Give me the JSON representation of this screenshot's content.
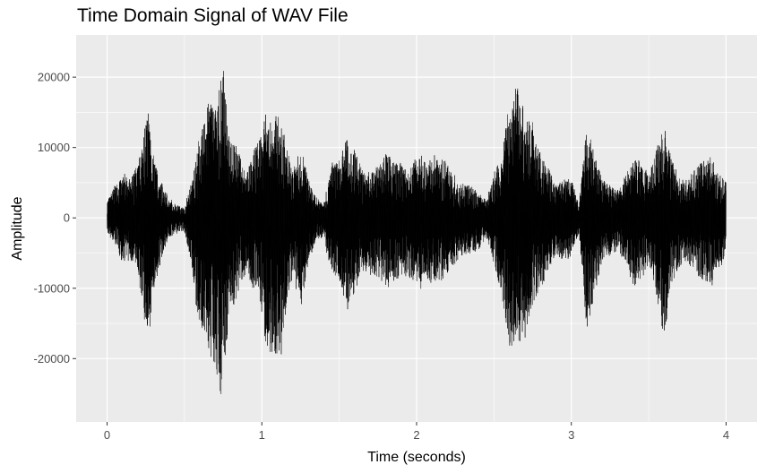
{
  "chart_data": {
    "type": "line",
    "title": "Time Domain Signal of WAV File",
    "xlabel": "Time (seconds)",
    "ylabel": "Amplitude",
    "xlim": [
      -0.2,
      4.2
    ],
    "ylim": [
      -29000,
      26000
    ],
    "x_ticks": [
      0,
      1,
      2,
      3,
      4
    ],
    "x_tick_labels": [
      "0",
      "1",
      "2",
      "3",
      "4"
    ],
    "y_ticks": [
      -20000,
      -10000,
      0,
      10000,
      20000
    ],
    "y_tick_labels": [
      "-20000",
      "-10000",
      "0",
      "10000",
      "20000"
    ],
    "grid": true,
    "panel_color": "#ebebeb",
    "line_color": "#000000",
    "series": [
      {
        "x": [
          0.0,
          0.05,
          0.1,
          0.15,
          0.2,
          0.22,
          0.25,
          0.27,
          0.3,
          0.33,
          0.36,
          0.4,
          0.45,
          0.5,
          0.55,
          0.58,
          0.62,
          0.66,
          0.7,
          0.73,
          0.75,
          0.78,
          0.82,
          0.86,
          0.9,
          0.94,
          0.98,
          1.02,
          1.06,
          1.1,
          1.14,
          1.17,
          1.2,
          1.23,
          1.26,
          1.3,
          1.35,
          1.4,
          1.45,
          1.5,
          1.55,
          1.6,
          1.65,
          1.7,
          1.75,
          1.8,
          1.85,
          1.9,
          1.95,
          2.0,
          2.05,
          2.1,
          2.15,
          2.2,
          2.25,
          2.3,
          2.35,
          2.4,
          2.45,
          2.5,
          2.55,
          2.6,
          2.65,
          2.7,
          2.75,
          2.8,
          2.85,
          2.9,
          2.95,
          3.0,
          3.05,
          3.1,
          3.15,
          3.2,
          3.25,
          3.3,
          3.35,
          3.4,
          3.45,
          3.5,
          3.55,
          3.6,
          3.65,
          3.7,
          3.75,
          3.8,
          3.85,
          3.9,
          3.95,
          4.0
        ],
        "y_max": [
          2500,
          5000,
          6500,
          6000,
          8500,
          10500,
          15000,
          17500,
          10000,
          7000,
          5000,
          3000,
          2000,
          1500,
          6000,
          11500,
          14000,
          18500,
          17500,
          21000,
          24000,
          14000,
          12000,
          9500,
          7000,
          10000,
          12000,
          16500,
          15000,
          16000,
          13500,
          10000,
          7500,
          9500,
          10500,
          6000,
          3000,
          2500,
          8000,
          9000,
          12500,
          10500,
          7500,
          7000,
          8000,
          10000,
          9000,
          8500,
          7000,
          10000,
          9500,
          9000,
          9500,
          8500,
          6000,
          5500,
          5000,
          4000,
          3000,
          6500,
          10000,
          18000,
          21000,
          16000,
          14000,
          10000,
          8000,
          5000,
          6000,
          6000,
          2000,
          15000,
          10000,
          6000,
          5000,
          4500,
          6500,
          9500,
          8500,
          7000,
          11000,
          14500,
          9000,
          6500,
          6000,
          7500,
          9000,
          9500,
          7000,
          5500
        ],
        "y_min": [
          -2500,
          -4000,
          -7000,
          -6500,
          -8000,
          -13000,
          -17000,
          -19000,
          -11000,
          -8500,
          -5500,
          -3000,
          -2500,
          -2000,
          -8000,
          -15000,
          -18000,
          -22000,
          -23500,
          -27000,
          -25000,
          -17500,
          -13500,
          -11000,
          -8500,
          -10500,
          -12000,
          -19000,
          -21000,
          -22500,
          -18000,
          -12000,
          -9000,
          -12000,
          -13500,
          -7000,
          -3500,
          -3500,
          -8500,
          -9500,
          -14500,
          -11500,
          -8500,
          -8500,
          -9500,
          -10500,
          -10000,
          -9000,
          -9000,
          -10500,
          -10000,
          -9500,
          -10000,
          -9000,
          -7000,
          -6000,
          -5500,
          -5000,
          -3000,
          -7000,
          -12000,
          -20000,
          -21500,
          -18500,
          -14000,
          -11000,
          -8500,
          -5500,
          -7000,
          -6000,
          -2500,
          -18000,
          -12000,
          -7000,
          -6000,
          -5000,
          -7000,
          -10500,
          -9500,
          -8000,
          -12000,
          -19000,
          -10000,
          -7500,
          -7000,
          -8500,
          -10000,
          -10500,
          -8000,
          -6500
        ]
      }
    ]
  }
}
